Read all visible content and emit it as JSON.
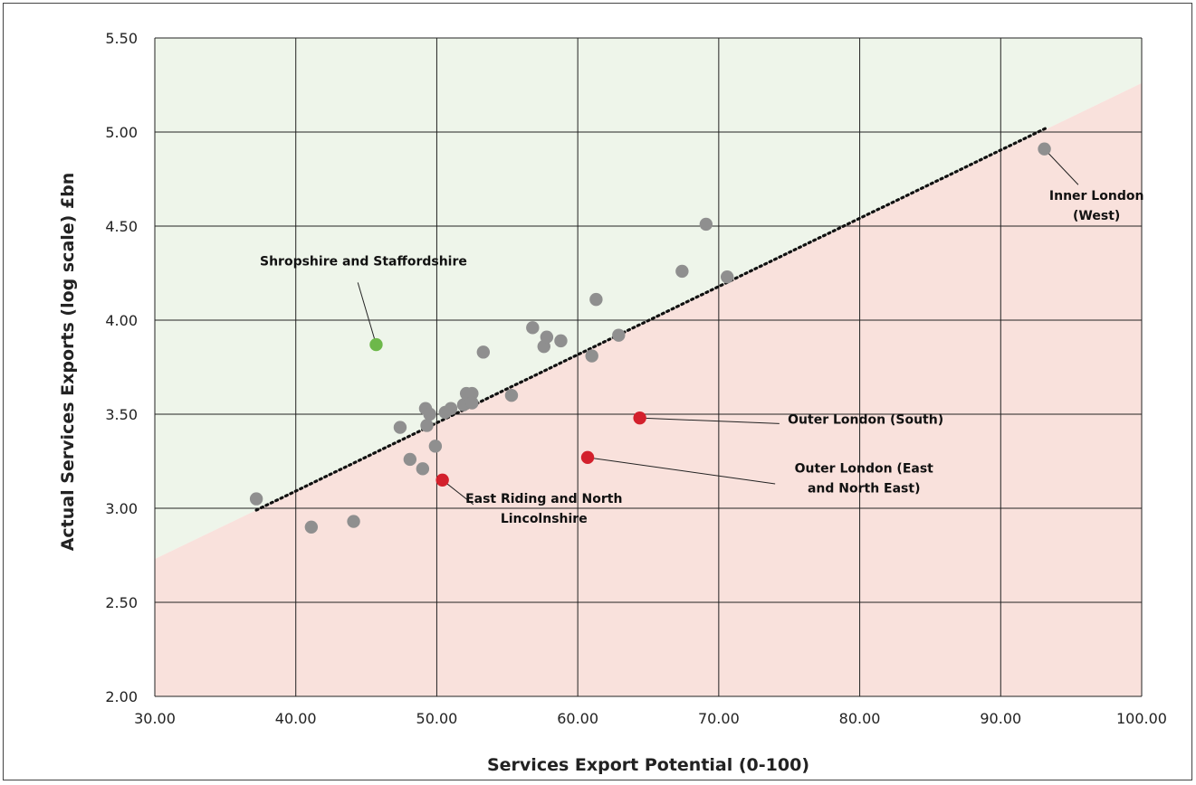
{
  "chart_data": {
    "type": "scatter",
    "xlabel": "Services Export Potential (0-100)",
    "ylabel": "Actual Services Exports (log scale) £bn",
    "xlim": [
      30,
      100
    ],
    "ylim": [
      2,
      5.5
    ],
    "xticks": [
      "30.00",
      "40.00",
      "50.00",
      "60.00",
      "70.00",
      "80.00",
      "90.00",
      "100.00"
    ],
    "yticks": [
      "2.00",
      "2.50",
      "3.00",
      "3.50",
      "4.00",
      "4.50",
      "5.00",
      "5.50"
    ],
    "xtick_values": [
      30,
      40,
      50,
      60,
      70,
      80,
      90,
      100
    ],
    "ytick_values": [
      2,
      2.5,
      3,
      3.5,
      4,
      4.5,
      5,
      5.5
    ],
    "grid": true,
    "region_above_color": "#eef5ea",
    "region_below_color": "#f9e1dc",
    "boundary": {
      "x": [
        30,
        100
      ],
      "y": [
        2.73,
        5.26
      ]
    },
    "trendline": {
      "x": [
        37.2,
        93.2
      ],
      "y": [
        2.99,
        5.02
      ],
      "color": "#111111",
      "style": "dotted"
    },
    "point_colors": {
      "default": "#8f8f8f",
      "above": "#6db84a",
      "below": "#d3202c"
    },
    "points": [
      {
        "x": 37.2,
        "y": 3.05,
        "group": "default"
      },
      {
        "x": 41.1,
        "y": 2.9,
        "group": "default"
      },
      {
        "x": 44.1,
        "y": 2.93,
        "group": "default"
      },
      {
        "x": 47.4,
        "y": 3.43,
        "group": "default"
      },
      {
        "x": 48.1,
        "y": 3.26,
        "group": "default"
      },
      {
        "x": 49.0,
        "y": 3.21,
        "group": "default"
      },
      {
        "x": 49.2,
        "y": 3.53,
        "group": "default"
      },
      {
        "x": 49.3,
        "y": 3.44,
        "group": "default"
      },
      {
        "x": 49.5,
        "y": 3.5,
        "group": "default"
      },
      {
        "x": 49.9,
        "y": 3.33,
        "group": "default"
      },
      {
        "x": 50.6,
        "y": 3.51,
        "group": "default"
      },
      {
        "x": 51.0,
        "y": 3.53,
        "group": "default"
      },
      {
        "x": 51.9,
        "y": 3.55,
        "group": "default"
      },
      {
        "x": 52.1,
        "y": 3.61,
        "group": "default"
      },
      {
        "x": 52.5,
        "y": 3.61,
        "group": "default"
      },
      {
        "x": 52.5,
        "y": 3.56,
        "group": "default"
      },
      {
        "x": 53.3,
        "y": 3.83,
        "group": "default"
      },
      {
        "x": 55.3,
        "y": 3.6,
        "group": "default"
      },
      {
        "x": 56.8,
        "y": 3.96,
        "group": "default"
      },
      {
        "x": 57.6,
        "y": 3.86,
        "group": "default"
      },
      {
        "x": 57.8,
        "y": 3.91,
        "group": "default"
      },
      {
        "x": 58.8,
        "y": 3.89,
        "group": "default"
      },
      {
        "x": 61.0,
        "y": 3.81,
        "group": "default"
      },
      {
        "x": 61.3,
        "y": 4.11,
        "group": "default"
      },
      {
        "x": 62.9,
        "y": 3.92,
        "group": "default"
      },
      {
        "x": 67.4,
        "y": 4.26,
        "group": "default"
      },
      {
        "x": 69.1,
        "y": 4.51,
        "group": "default"
      },
      {
        "x": 70.6,
        "y": 4.23,
        "group": "default"
      },
      {
        "x": 93.1,
        "y": 4.91,
        "group": "default"
      },
      {
        "x": 45.7,
        "y": 3.87,
        "group": "above"
      },
      {
        "x": 50.4,
        "y": 3.15,
        "group": "below"
      },
      {
        "x": 60.7,
        "y": 3.27,
        "group": "below"
      },
      {
        "x": 64.4,
        "y": 3.48,
        "group": "below"
      }
    ],
    "annotations": [
      {
        "lines": [
          "Shropshire and Staffordshire"
        ],
        "point": {
          "x": 45.7,
          "y": 3.87
        },
        "line_from": {
          "x": 44.4,
          "y": 4.2
        },
        "text_at": {
          "x": 44.8,
          "y": 4.29
        },
        "anchor": "middle"
      },
      {
        "lines": [
          "Inner London",
          "(West)"
        ],
        "point": {
          "x": 93.1,
          "y": 4.91
        },
        "line_from": {
          "x": 95.5,
          "y": 4.72
        },
        "text_at": {
          "x": 96.8,
          "y": 4.64
        },
        "anchor": "middle"
      },
      {
        "lines": [
          "Outer London (South)"
        ],
        "point": {
          "x": 64.4,
          "y": 3.48
        },
        "line_from": {
          "x": 74.3,
          "y": 3.45
        },
        "text_at": {
          "x": 74.9,
          "y": 3.45
        },
        "anchor": "start"
      },
      {
        "lines": [
          "Outer London (East",
          "and North East)"
        ],
        "point": {
          "x": 60.7,
          "y": 3.27
        },
        "line_from": {
          "x": 74.0,
          "y": 3.13
        },
        "text_at": {
          "x": 80.3,
          "y": 3.19
        },
        "anchor": "middle"
      },
      {
        "lines": [
          "East Riding and North",
          "Lincolnshire"
        ],
        "point": {
          "x": 50.4,
          "y": 3.15
        },
        "line_from": {
          "x": 52.6,
          "y": 3.02
        },
        "text_at": {
          "x": 57.6,
          "y": 3.03
        },
        "anchor": "middle"
      }
    ]
  }
}
